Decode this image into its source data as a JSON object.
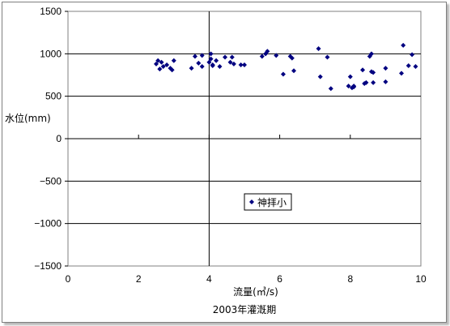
{
  "chart_data": {
    "type": "scatter",
    "title": "",
    "xlabel": "流量(㎥/s)",
    "ylabel": "水位(mm)",
    "caption": "2003年灌漑期",
    "xlim": [
      0,
      10
    ],
    "ylim": [
      -1500,
      1500
    ],
    "xticks": [
      "0",
      "2",
      "4",
      "6",
      "8",
      "10"
    ],
    "yticks": [
      "1500",
      "1000",
      "500",
      "0",
      "−500",
      "−1000",
      "−1500"
    ],
    "grid": true,
    "legend_position": "center-right",
    "series": [
      {
        "name": "神拝小",
        "color": "#000080",
        "marker": "diamond",
        "points": [
          [
            2.5,
            880
          ],
          [
            2.55,
            920
          ],
          [
            2.6,
            820
          ],
          [
            2.65,
            900
          ],
          [
            2.7,
            850
          ],
          [
            2.8,
            870
          ],
          [
            2.9,
            830
          ],
          [
            2.95,
            810
          ],
          [
            3.0,
            920
          ],
          [
            3.5,
            830
          ],
          [
            3.6,
            970
          ],
          [
            3.7,
            890
          ],
          [
            3.8,
            980
          ],
          [
            3.8,
            850
          ],
          [
            4.0,
            900
          ],
          [
            4.05,
            940
          ],
          [
            4.05,
            1000
          ],
          [
            4.1,
            870
          ],
          [
            4.1,
            860
          ],
          [
            4.2,
            920
          ],
          [
            4.3,
            850
          ],
          [
            4.45,
            960
          ],
          [
            4.6,
            900
          ],
          [
            4.65,
            960
          ],
          [
            4.7,
            880
          ],
          [
            4.9,
            870
          ],
          [
            5.0,
            870
          ],
          [
            5.5,
            970
          ],
          [
            5.6,
            1000
          ],
          [
            5.65,
            1030
          ],
          [
            5.9,
            980
          ],
          [
            6.1,
            760
          ],
          [
            6.3,
            970
          ],
          [
            6.35,
            950
          ],
          [
            6.4,
            800
          ],
          [
            7.1,
            1060
          ],
          [
            7.15,
            730
          ],
          [
            7.35,
            960
          ],
          [
            7.45,
            590
          ],
          [
            7.95,
            620
          ],
          [
            8.0,
            730
          ],
          [
            8.05,
            600
          ],
          [
            8.1,
            620
          ],
          [
            8.1,
            610
          ],
          [
            8.35,
            810
          ],
          [
            8.4,
            650
          ],
          [
            8.45,
            660
          ],
          [
            8.55,
            970
          ],
          [
            8.6,
            1000
          ],
          [
            8.6,
            790
          ],
          [
            8.65,
            780
          ],
          [
            8.65,
            660
          ],
          [
            9.0,
            830
          ],
          [
            9.0,
            670
          ],
          [
            9.45,
            770
          ],
          [
            9.5,
            1100
          ],
          [
            9.65,
            860
          ],
          [
            9.75,
            990
          ],
          [
            9.85,
            850
          ]
        ]
      }
    ]
  }
}
